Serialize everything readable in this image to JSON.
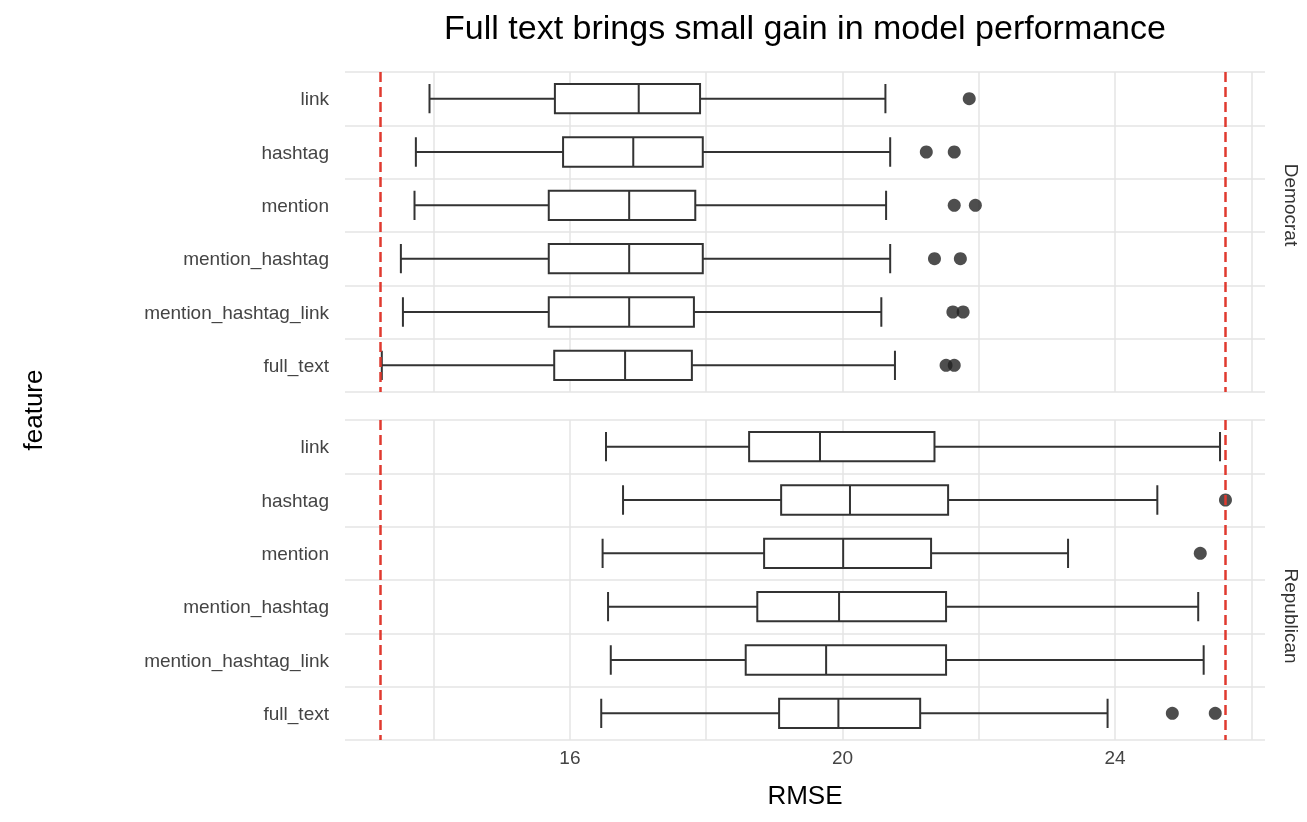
{
  "chart_data": [
    {
      "type": "box",
      "orientation": "horizontal",
      "title": "Full text brings small gain in model performance",
      "ylabel": "feature",
      "y2label": "Democrat",
      "categories": [
        "link",
        "hashtag",
        "mention",
        "mention_hashtag",
        "mention_hashtag_link",
        "full_text"
      ],
      "boxes": [
        {
          "low": 13.94,
          "q1": 15.78,
          "median": 17.01,
          "q3": 17.91,
          "high": 20.63,
          "outliers": [
            21.86
          ]
        },
        {
          "low": 13.74,
          "q1": 15.9,
          "median": 16.93,
          "q3": 17.95,
          "high": 20.7,
          "outliers": [
            21.23,
            21.64
          ]
        },
        {
          "low": 13.72,
          "q1": 15.69,
          "median": 16.87,
          "q3": 17.84,
          "high": 20.64,
          "outliers": [
            21.64,
            21.95
          ]
        },
        {
          "low": 13.52,
          "q1": 15.69,
          "median": 16.87,
          "q3": 17.95,
          "high": 20.7,
          "outliers": [
            21.35,
            21.73
          ]
        },
        {
          "low": 13.55,
          "q1": 15.69,
          "median": 16.87,
          "q3": 17.82,
          "high": 20.57,
          "outliers": [
            21.62,
            21.77
          ]
        },
        {
          "low": 13.24,
          "q1": 15.77,
          "median": 16.81,
          "q3": 17.79,
          "high": 20.77,
          "outliers": [
            21.52,
            21.64
          ]
        }
      ],
      "xlim": [
        12.7,
        26.2
      ],
      "xticks": [
        {
          "value": 14,
          "label": null
        },
        16,
        {
          "value": 18,
          "label": null
        },
        20,
        {
          "value": 22,
          "label": null
        },
        24,
        {
          "value": 26,
          "label": null
        }
      ],
      "ref_lines": [
        {
          "axis": "x",
          "value": 13.22,
          "color": "#e03a2f",
          "line_style": "dashed"
        },
        {
          "axis": "x",
          "value": 25.62,
          "color": "#e03a2f",
          "line_style": "dashed"
        }
      ],
      "grid": true,
      "tick_labels": "y"
    },
    {
      "type": "box",
      "orientation": "horizontal",
      "xlabel": "RMSE",
      "y2label": "Republican",
      "categories": [
        "link",
        "hashtag",
        "mention",
        "mention_hashtag",
        "mention_hashtag_link",
        "full_text"
      ],
      "boxes": [
        {
          "low": 16.53,
          "q1": 18.63,
          "median": 19.67,
          "q3": 21.35,
          "high": 25.54
        },
        {
          "low": 16.78,
          "q1": 19.1,
          "median": 20.11,
          "q3": 21.55,
          "high": 24.62,
          "outliers": [
            25.62
          ]
        },
        {
          "low": 16.48,
          "q1": 18.85,
          "median": 20.01,
          "q3": 21.3,
          "high": 23.31,
          "outliers": [
            25.25
          ]
        },
        {
          "low": 16.56,
          "q1": 18.75,
          "median": 19.95,
          "q3": 21.52,
          "high": 25.22
        },
        {
          "low": 16.6,
          "q1": 18.58,
          "median": 19.76,
          "q3": 21.52,
          "high": 25.3
        },
        {
          "low": 16.46,
          "q1": 19.07,
          "median": 19.94,
          "q3": 21.14,
          "high": 23.89,
          "outliers": [
            24.84,
            25.47
          ]
        }
      ],
      "xlim": [
        12.7,
        26.2
      ],
      "xticks": [
        {
          "value": 14,
          "label": null
        },
        16,
        {
          "value": 18,
          "label": null
        },
        20,
        {
          "value": 22,
          "label": null
        },
        24,
        {
          "value": 26,
          "label": null
        }
      ],
      "ref_lines": [
        {
          "axis": "x",
          "value": 13.22,
          "color": "#e03a2f",
          "line_style": "dashed"
        },
        {
          "axis": "x",
          "value": 25.62,
          "color": "#e03a2f",
          "line_style": "dashed"
        }
      ],
      "grid": true
    }
  ]
}
